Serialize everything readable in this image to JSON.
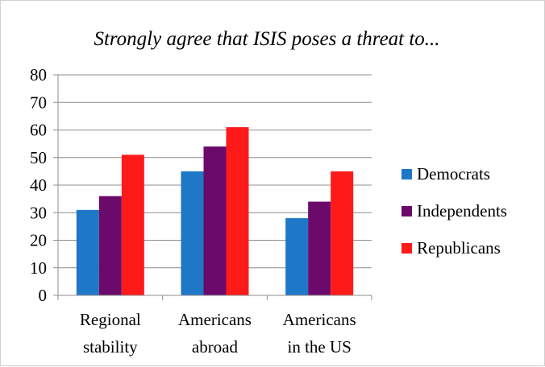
{
  "chart_data": {
    "type": "bar",
    "title": "Strongly agree that ISIS poses a threat to...",
    "xlabel": "",
    "ylabel": "",
    "ylim": [
      0,
      80
    ],
    "yticks": [
      0,
      10,
      20,
      30,
      40,
      50,
      60,
      70,
      80
    ],
    "grid": true,
    "legend_position": "right",
    "categories": [
      [
        "Regional",
        "stability"
      ],
      [
        "Americans",
        "abroad"
      ],
      [
        "Americans",
        "in the US"
      ]
    ],
    "series": [
      {
        "name": "Democrats",
        "color": "#1f77c8",
        "values": [
          31,
          45,
          28
        ]
      },
      {
        "name": "Independents",
        "color": "#6b0a6b",
        "values": [
          36,
          54,
          34
        ]
      },
      {
        "name": "Republicans",
        "color": "#ff1a1a",
        "values": [
          51,
          61,
          45
        ]
      }
    ]
  }
}
